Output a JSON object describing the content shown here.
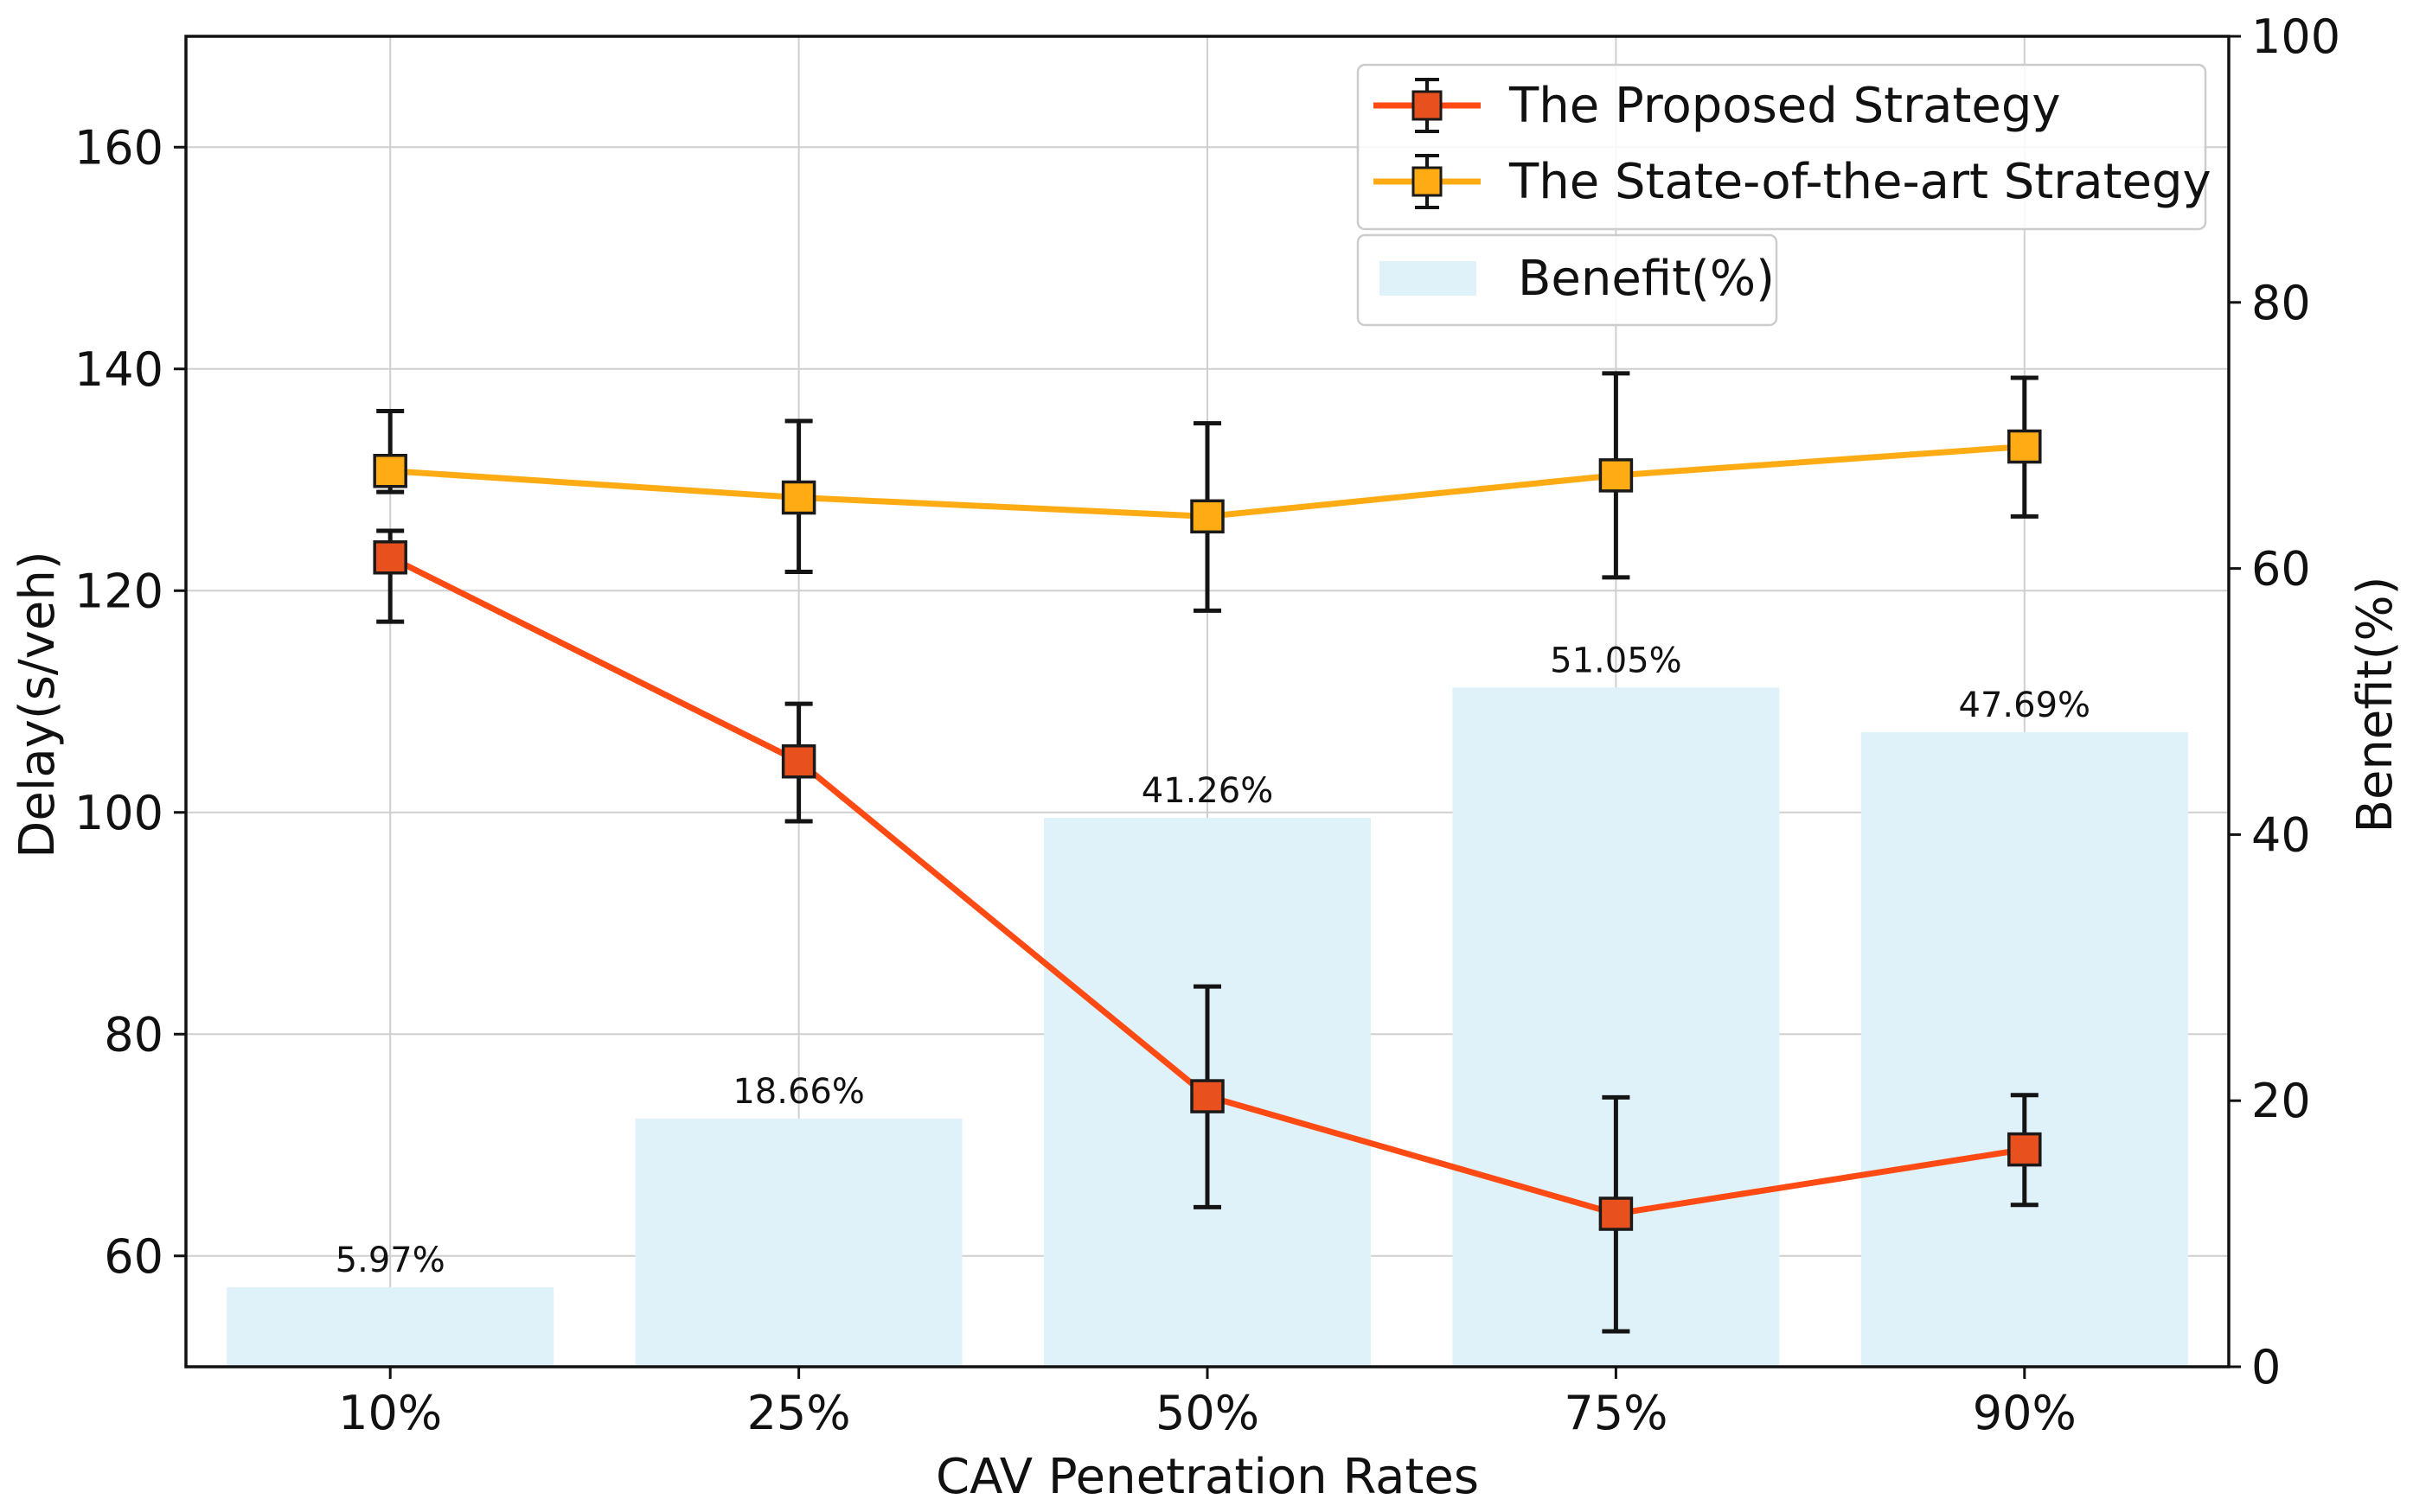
{
  "chart_data": {
    "type": "bar+line",
    "categories": [
      "10%",
      "25%",
      "50%",
      "75%",
      "90%"
    ],
    "xlabel": "CAV Penetration Rates",
    "ylabel": "Delay(s/veh)",
    "y2label": "Benefit(%)",
    "ylim": [
      50,
      170
    ],
    "y2lim": [
      0,
      100
    ],
    "yticks": [
      60,
      80,
      100,
      120,
      140,
      160
    ],
    "y2ticks": [
      0,
      20,
      40,
      60,
      80,
      100
    ],
    "grid": true,
    "legend_position": "top-right",
    "series": [
      {
        "name": "The Proposed Strategy",
        "type": "line",
        "axis": "left",
        "color": "#ff4a14",
        "marker_color": "#e8501e",
        "values": [
          123.0,
          104.6,
          74.4,
          63.8,
          69.6
        ],
        "error_low": [
          117.2,
          99.2,
          64.4,
          53.2,
          64.6
        ],
        "error_high": [
          125.4,
          109.8,
          84.3,
          74.3,
          74.5
        ]
      },
      {
        "name": "The State-of-the-art Strategy",
        "type": "line",
        "axis": "left",
        "color": "#ffac14",
        "marker_color": "#ffac14",
        "values": [
          130.8,
          128.4,
          126.7,
          130.4,
          133.0
        ],
        "error_low": [
          128.9,
          121.7,
          118.2,
          121.2,
          126.7
        ],
        "error_high": [
          136.2,
          135.3,
          135.1,
          139.6,
          139.2
        ]
      },
      {
        "name": "Benefit(%)",
        "type": "bar",
        "axis": "right",
        "color": "#dff1f9",
        "values": [
          5.97,
          18.66,
          41.26,
          51.05,
          47.69
        ],
        "labels": [
          "5.97%",
          "18.66%",
          "41.26%",
          "51.05%",
          "47.69%"
        ]
      }
    ]
  }
}
